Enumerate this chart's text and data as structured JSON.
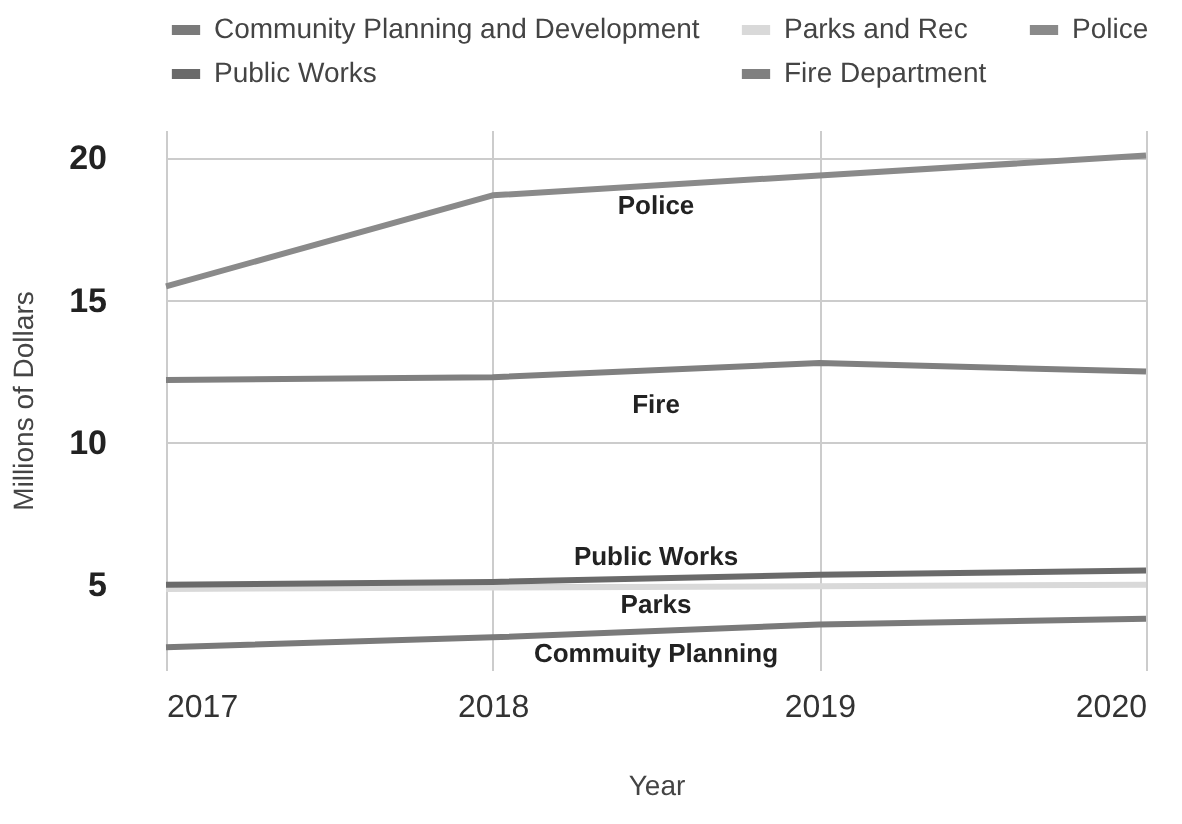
{
  "chart_data": {
    "type": "line",
    "xlabel": "Year",
    "ylabel": "Millions of Dollars",
    "x": [
      2017,
      2018,
      2019,
      2020
    ],
    "series": [
      {
        "name": "Community Planning and Development",
        "color": "#7a7a7a",
        "values": [
          2.8,
          3.15,
          3.6,
          3.8
        ]
      },
      {
        "name": "Parks and Rec",
        "color": "#d9d9d9",
        "values": [
          4.85,
          4.9,
          4.95,
          5.0
        ]
      },
      {
        "name": "Police",
        "color": "#8a8a8a",
        "values": [
          15.5,
          18.7,
          19.4,
          20.1
        ]
      },
      {
        "name": "Public Works",
        "color": "#6a6a6a",
        "values": [
          5.0,
          5.1,
          5.35,
          5.5
        ]
      },
      {
        "name": "Fire Department",
        "color": "#808080",
        "values": [
          12.2,
          12.3,
          12.8,
          12.5
        ]
      }
    ],
    "xlim": [
      2017,
      2020
    ],
    "xticks": [
      2017,
      2018,
      2019,
      2020
    ],
    "ylim": [
      2,
      21
    ],
    "yticks": [
      5,
      10,
      15,
      20
    ],
    "grid": true,
    "legend": "top",
    "marker": "none",
    "line_style": "solid",
    "annotations": [
      "Police",
      "Fire",
      "Public Works",
      "Parks",
      "Commuity Planning"
    ]
  }
}
